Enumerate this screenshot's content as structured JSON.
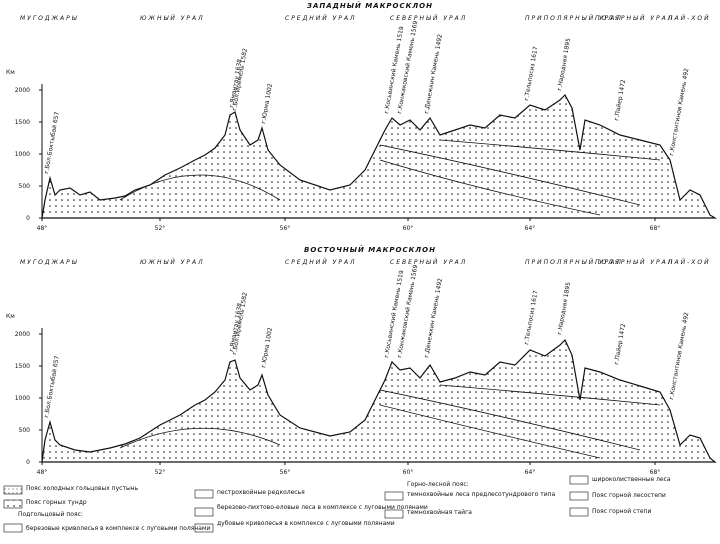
{
  "top": {
    "title": "ЗАПАДНЫЙ МАКРОСКЛОН",
    "regions": [
      "МУГОДЖАРЫ",
      "ЮЖНЫЙ УРАЛ",
      "СРЕДНИЙ УРАЛ",
      "СЕВЕРНЫЙ УРАЛ",
      "ПРИПОЛЯРНЫЙ УРАЛ",
      "ПОЛЯРНЫЙ УРАЛ",
      "ПАЙ-ХОЙ"
    ],
    "y_unit": "Км",
    "yticks": [
      "2000",
      "1500",
      "1000",
      "500",
      "0"
    ],
    "xticks": [
      "48°",
      "52°",
      "56°",
      "60°",
      "64°",
      "68°"
    ],
    "peaks": [
      "г.Бол.Боктыбай 657",
      "г.Ямантау 1638",
      "г.Бол.Иремель 1582",
      "г.Юрма 1002",
      "г.Косьвинский Камень 1519",
      "г.Конжаковский Камень 1569",
      "г.Денежкин Камень 1492",
      "г.Тельпосиз 1617",
      "г.Народная 1895",
      "г.Пайер 1472",
      "г.Константинов Камень 492"
    ]
  },
  "bottom": {
    "title": "ВОСТОЧНЫЙ МАКРОСКЛОН",
    "regions": [
      "МУГОДЖАРЫ",
      "ЮЖНЫЙ УРАЛ",
      "СРЕДНИЙ УРАЛ",
      "СЕВЕРНЫЙ УРАЛ",
      "ПРИПОЛЯРНЫЙ УРАЛ",
      "ПОЛЯРНЫЙ УРАЛ",
      "ПАЙ-ХОЙ"
    ],
    "y_unit": "Км",
    "yticks": [
      "2000",
      "1500",
      "1000",
      "500",
      "0"
    ],
    "xticks": [
      "48°",
      "52°",
      "56°",
      "60°",
      "64°",
      "68°"
    ],
    "peaks": [
      "г.Бол.Боктыбай 657",
      "г.Ямантау 1638",
      "г.Бол.Иремель 1582",
      "г.Юрма 1002",
      "г.Косьвинский Камень 1519",
      "г.Конжаковский Камень 1569",
      "г.Денежкин Камень 1492",
      "г.Тельпосиз 1617",
      "г.Народная 1895",
      "г.Пайер 1472",
      "г.Константинов Камень 492"
    ]
  },
  "legend": {
    "col1": [
      "Пояс холодных гольцовых пустынь",
      "Пояс горных тундр",
      "Подгольцовый пояс:",
      "березовые криволесья в комплексе с луговыми полянами"
    ],
    "col2": [
      "пестрохвойные редколесья",
      "березово-пихтово-еловые леса в комплексе с луговыми полянами",
      "дубовые криволесья в комплексе с луговыми полянами"
    ],
    "col3": [
      "Горно-лесной пояс:",
      "темнохвойные леса предлесотундрового типа",
      "темнохвойная тайга"
    ],
    "col4": [
      "широколиственные леса",
      "Пояс горной лесостепи",
      "Пояс горной степи"
    ]
  }
}
